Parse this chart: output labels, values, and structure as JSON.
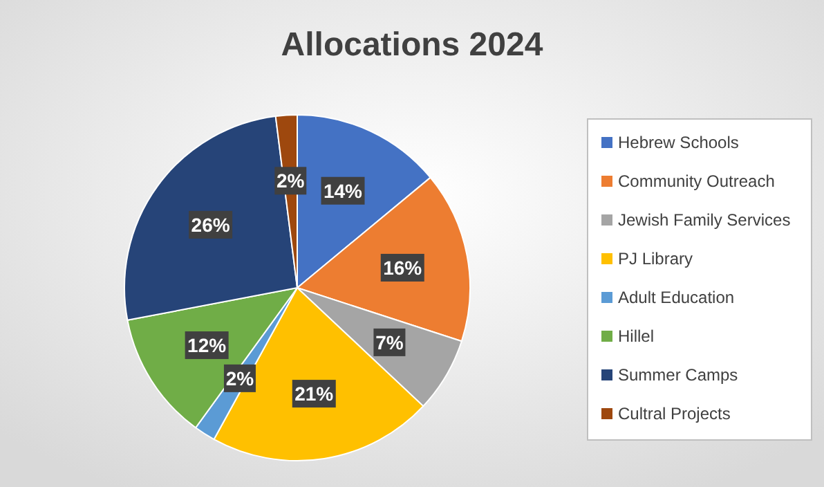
{
  "chart_data": {
    "type": "pie",
    "title": "Allocations 2024",
    "categories": [
      "Hebrew Schools",
      "Community Outreach",
      "Jewish Family Services",
      "PJ Library",
      "Adult Education",
      "Hillel",
      "Summer Camps",
      "Cultral Projects"
    ],
    "values": [
      14,
      16,
      7,
      21,
      2,
      12,
      26,
      2
    ],
    "value_labels": [
      "14%",
      "16%",
      "7%",
      "21%",
      "2%",
      "12%",
      "26%",
      "2%"
    ],
    "colors": [
      "#4472c4",
      "#ed7d31",
      "#a5a5a5",
      "#ffc000",
      "#5b9bd5",
      "#70ad47",
      "#264478",
      "#9e480e"
    ],
    "legend": "right"
  }
}
